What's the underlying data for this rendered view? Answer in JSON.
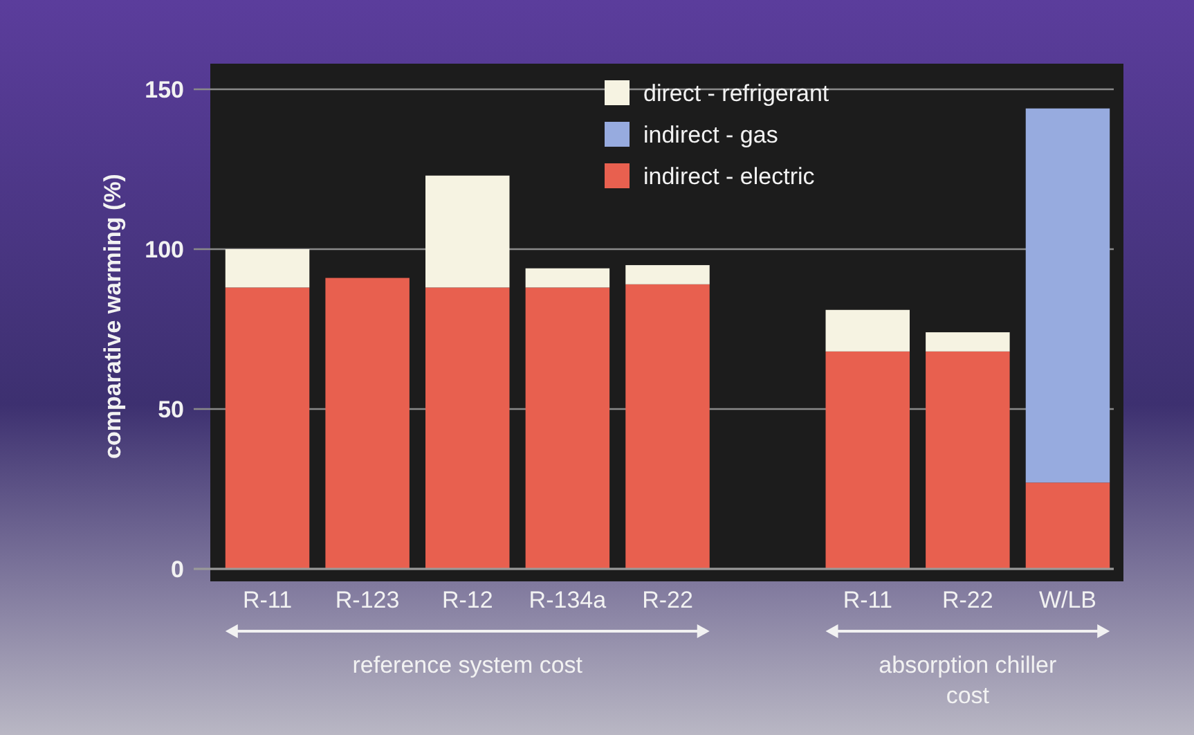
{
  "chart_data": {
    "type": "bar",
    "stacked": true,
    "ylabel": "comparative warming (%)",
    "categories": [
      "R-11",
      "R-123",
      "R-12",
      "R-134a",
      "R-22",
      null,
      "R-11",
      "R-22",
      "W/LB"
    ],
    "series": [
      {
        "name": "indirect - electric",
        "color": "#e8604f",
        "values": [
          88,
          91,
          88,
          88,
          89,
          null,
          68,
          68,
          27
        ]
      },
      {
        "name": "indirect - gas",
        "color": "#97abdf",
        "values": [
          null,
          null,
          null,
          null,
          null,
          null,
          null,
          null,
          117
        ]
      },
      {
        "name": "direct - refrigerant",
        "color": "#f6f3e2",
        "values": [
          12,
          null,
          35,
          6,
          6,
          null,
          13,
          6,
          null
        ]
      }
    ],
    "ylim": [
      0,
      158
    ],
    "yticks": [
      0,
      50,
      100,
      150
    ],
    "grid": "y",
    "legend": "top right",
    "annotations": [
      "reference system cost",
      "absorption chiller cost"
    ]
  }
}
